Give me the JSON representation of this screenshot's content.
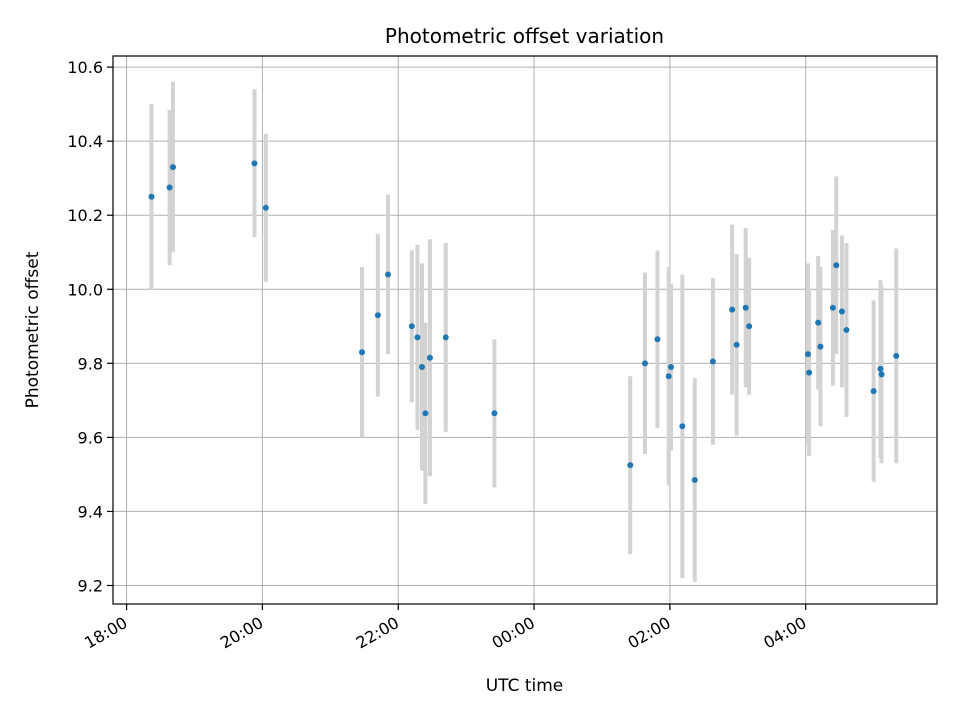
{
  "chart_data": {
    "type": "scatter",
    "title": "Photometric offset variation",
    "xlabel": "UTC time",
    "ylabel": "Photometric offset",
    "x_axis_type": "time",
    "x_reference_date": "",
    "xlim": [
      "17:48",
      "05:56"
    ],
    "ylim": [
      9.15,
      10.63
    ],
    "x_ticks": [
      "18:00",
      "20:00",
      "22:00",
      "00:00",
      "02:00",
      "04:00"
    ],
    "y_ticks": [
      9.2,
      9.4,
      9.6,
      9.8,
      10.0,
      10.2,
      10.4,
      10.6
    ],
    "grid": true,
    "colors": {
      "point": "#1f77b4",
      "errorbar": "#d3d3d3",
      "grid": "#b0b0b0"
    },
    "series": [
      {
        "points": [
          {
            "x": "18:22",
            "y": 10.25,
            "err": 0.25
          },
          {
            "x": "18:38",
            "y": 10.275,
            "err": 0.21
          },
          {
            "x": "18:41",
            "y": 10.33,
            "err": 0.23
          },
          {
            "x": "19:53",
            "y": 10.34,
            "err": 0.2
          },
          {
            "x": "20:03",
            "y": 10.22,
            "err": 0.2
          },
          {
            "x": "21:28",
            "y": 9.83,
            "err": 0.23
          },
          {
            "x": "21:42",
            "y": 9.93,
            "err": 0.22
          },
          {
            "x": "21:51",
            "y": 10.04,
            "err": 0.215
          },
          {
            "x": "22:12",
            "y": 9.9,
            "err": 0.205
          },
          {
            "x": "22:17",
            "y": 9.87,
            "err": 0.25
          },
          {
            "x": "22:21",
            "y": 9.79,
            "err": 0.28
          },
          {
            "x": "22:24",
            "y": 9.665,
            "err": 0.245
          },
          {
            "x": "22:28",
            "y": 9.815,
            "err": 0.32
          },
          {
            "x": "22:42",
            "y": 9.87,
            "err": 0.255
          },
          {
            "x": "23:25",
            "y": 9.665,
            "err": 0.2
          },
          {
            "x": "01:25",
            "y": 9.525,
            "err": 0.24
          },
          {
            "x": "01:38",
            "y": 9.8,
            "err": 0.245
          },
          {
            "x": "01:49",
            "y": 9.865,
            "err": 0.24
          },
          {
            "x": "01:59",
            "y": 9.765,
            "err": 0.295
          },
          {
            "x": "02:01",
            "y": 9.79,
            "err": 0.225
          },
          {
            "x": "02:11",
            "y": 9.63,
            "err": 0.41
          },
          {
            "x": "02:22",
            "y": 9.485,
            "err": 0.275
          },
          {
            "x": "02:38",
            "y": 9.805,
            "err": 0.225
          },
          {
            "x": "02:55",
            "y": 9.945,
            "err": 0.23
          },
          {
            "x": "02:59",
            "y": 9.85,
            "err": 0.245
          },
          {
            "x": "03:07",
            "y": 9.95,
            "err": 0.215
          },
          {
            "x": "03:10",
            "y": 9.9,
            "err": 0.185
          },
          {
            "x": "04:02",
            "y": 9.825,
            "err": 0.245
          },
          {
            "x": "04:03",
            "y": 9.775,
            "err": 0.225
          },
          {
            "x": "04:11",
            "y": 9.91,
            "err": 0.18
          },
          {
            "x": "04:13",
            "y": 9.845,
            "err": 0.215
          },
          {
            "x": "04:24",
            "y": 9.95,
            "err": 0.21
          },
          {
            "x": "04:27",
            "y": 10.065,
            "err": 0.24
          },
          {
            "x": "04:32",
            "y": 9.94,
            "err": 0.205
          },
          {
            "x": "04:36",
            "y": 9.89,
            "err": 0.235
          },
          {
            "x": "05:00",
            "y": 9.725,
            "err": 0.245
          },
          {
            "x": "05:06",
            "y": 9.785,
            "err": 0.24
          },
          {
            "x": "05:07",
            "y": 9.77,
            "err": 0.24
          },
          {
            "x": "05:20",
            "y": 9.82,
            "err": 0.29
          }
        ]
      }
    ]
  }
}
